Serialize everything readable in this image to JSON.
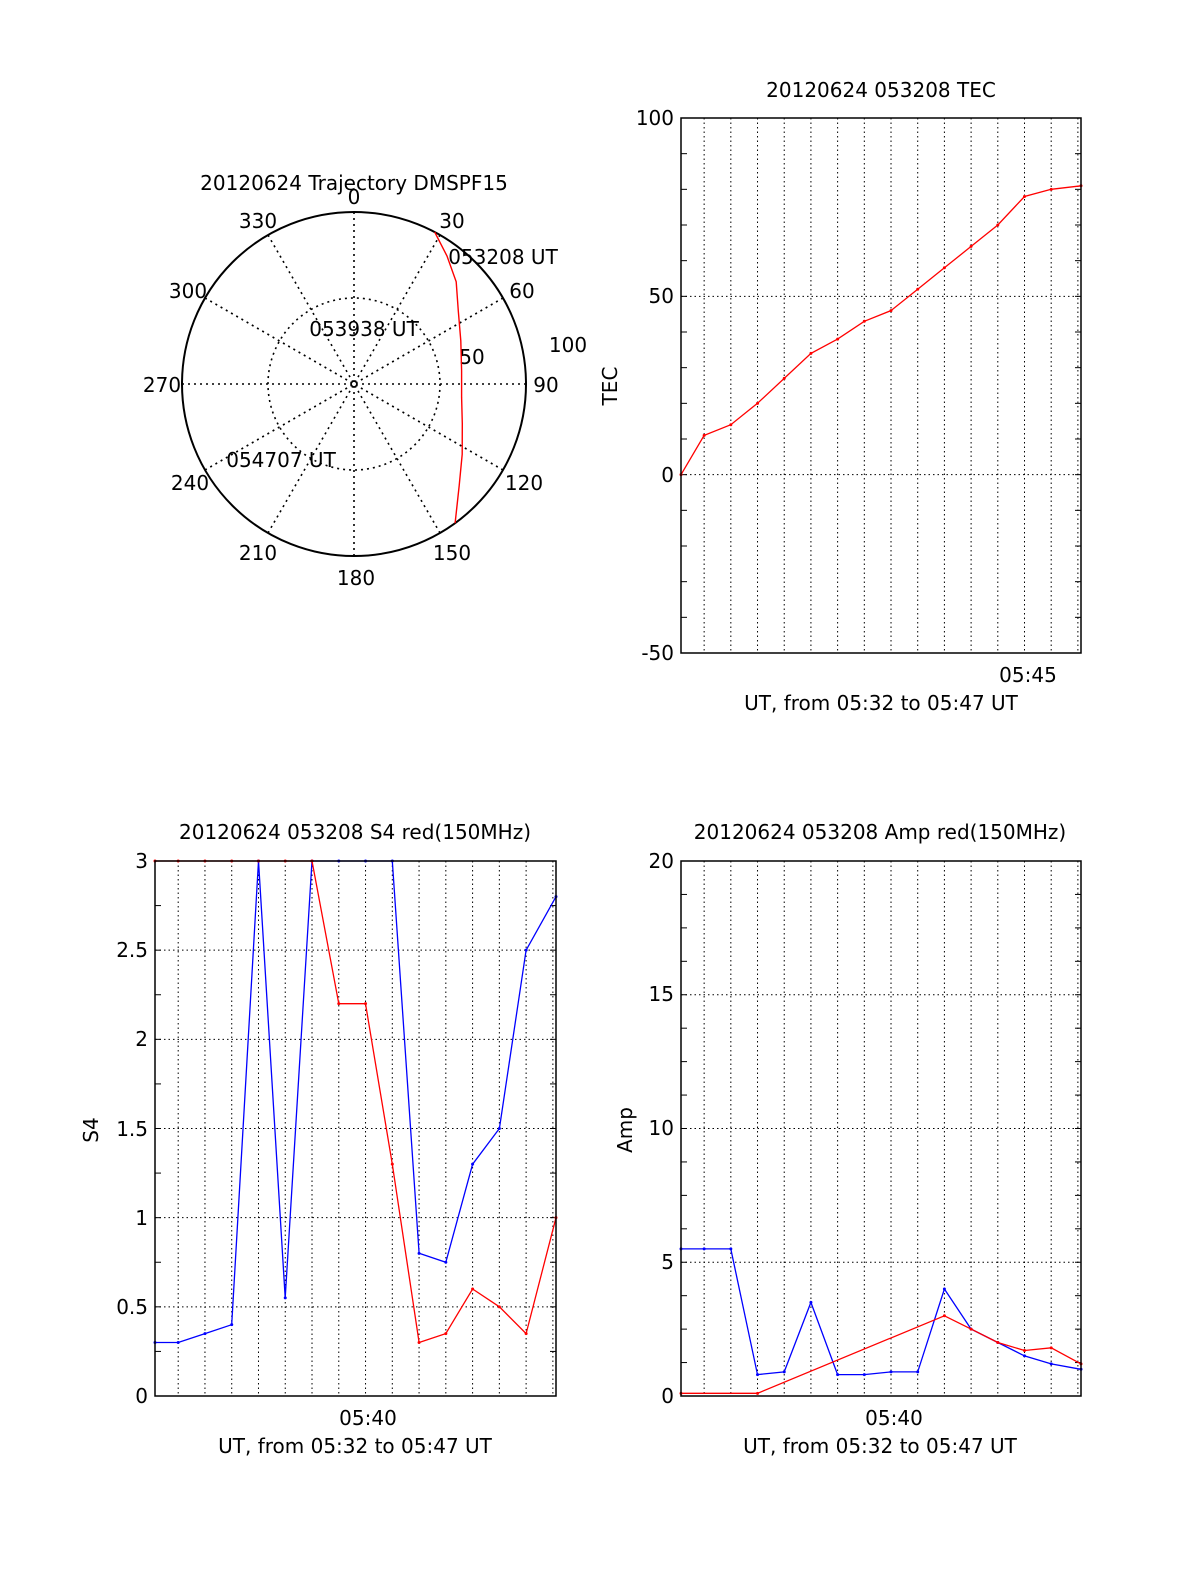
{
  "colors": {
    "series_red": "#ff0000",
    "series_blue": "#0000ff",
    "axis": "#000000",
    "grid": "#000000"
  },
  "chart_data": [
    {
      "type": "polar",
      "title": "20120624 Trajectory DMSPF15",
      "angle_labels": [
        "0",
        "30",
        "60",
        "90",
        "120",
        "150",
        "180",
        "210",
        "240",
        "270",
        "300",
        "330"
      ],
      "radial_labels": [
        "50",
        "100"
      ],
      "rlim": [
        0,
        100
      ],
      "angle_direction": "clockwise, 0 at top",
      "grid": true,
      "series": [
        {
          "color": "red",
          "points": [
            [
              28,
              100
            ],
            [
              36,
              92
            ],
            [
              45,
              84
            ],
            [
              55,
              74
            ],
            [
              68,
              67
            ],
            [
              83,
              63
            ],
            [
              97,
              63
            ],
            [
              110,
              67
            ],
            [
              123,
              75
            ],
            [
              134,
              85
            ],
            [
              144,
              100
            ]
          ]
        }
      ],
      "annotations": [
        {
          "text": "053208 UT",
          "az": 28,
          "r": 100
        },
        {
          "text": "053938 UT",
          "az": 328,
          "r": 42
        },
        {
          "text": "054707 UT",
          "az": 236,
          "r": 100
        }
      ]
    },
    {
      "type": "line",
      "title": "20120624 053208 TEC",
      "xlabel": "UT, from 05:32 to 05:47 UT",
      "ylabel": "TEC",
      "xlim": [
        "05:32:08",
        "05:47:07"
      ],
      "ylim": [
        -50,
        100
      ],
      "yticks": [
        "100",
        "50",
        "0",
        "-50"
      ],
      "xtick_labels": [
        "05:45"
      ],
      "grid": true,
      "series": [
        {
          "color": "red",
          "x": [
            "05:32:08",
            "05:33:00",
            "05:34:00",
            "05:35:00",
            "05:36:00",
            "05:37:00",
            "05:38:00",
            "05:39:00",
            "05:40:00",
            "05:41:00",
            "05:42:00",
            "05:43:00",
            "05:44:00",
            "05:45:00",
            "05:46:00",
            "05:47:07"
          ],
          "y": [
            0,
            11,
            14,
            20,
            27,
            34,
            38,
            43,
            46,
            52,
            58,
            64,
            70,
            78,
            80,
            81
          ]
        }
      ]
    },
    {
      "type": "line",
      "title": "20120624 053208 S4 red(150MHz)",
      "xlabel": "UT, from 05:32 to 05:47 UT",
      "ylabel": "S4",
      "xlim": [
        "05:32:08",
        "05:47:07"
      ],
      "ylim": [
        0,
        3
      ],
      "yticks": [
        "3",
        "2.5",
        "2",
        "1.5",
        "1",
        "0.5",
        "0"
      ],
      "xtick_labels": [
        "05:40"
      ],
      "grid": true,
      "series": [
        {
          "color": "blue",
          "x": [
            "05:32:08",
            "05:33:00",
            "05:34:00",
            "05:35:00",
            "05:36:00",
            "05:37:00",
            "05:38:00",
            "05:39:00",
            "05:40:00",
            "05:41:00",
            "05:42:00",
            "05:43:00",
            "05:44:00",
            "05:45:00",
            "05:46:00",
            "05:47:07"
          ],
          "y": [
            0.3,
            0.3,
            0.35,
            0.4,
            3.0,
            0.55,
            3.0,
            3.0,
            3.0,
            3.0,
            0.8,
            0.75,
            1.3,
            1.5,
            2.5,
            2.8
          ]
        },
        {
          "color": "red",
          "x": [
            "05:32:08",
            "05:33:00",
            "05:34:00",
            "05:35:00",
            "05:36:00",
            "05:37:00",
            "05:38:00",
            "05:39:00",
            "05:40:00",
            "05:41:00",
            "05:42:00",
            "05:43:00",
            "05:44:00",
            "05:45:00",
            "05:46:00",
            "05:47:07"
          ],
          "y": [
            3.0,
            3.0,
            3.0,
            3.0,
            3.0,
            3.0,
            3.0,
            2.2,
            2.2,
            1.3,
            0.3,
            0.35,
            0.6,
            0.5,
            0.35,
            1.0
          ]
        }
      ]
    },
    {
      "type": "line",
      "title": "20120624 053208 Amp red(150MHz)",
      "xlabel": "UT, from 05:32 to 05:47 UT",
      "ylabel": "Amp",
      "xlim": [
        "05:32:08",
        "05:47:07"
      ],
      "ylim": [
        0,
        20
      ],
      "yticks": [
        "20",
        "15",
        "10",
        "5",
        "0"
      ],
      "xtick_labels": [
        "05:40"
      ],
      "grid": true,
      "series": [
        {
          "color": "blue",
          "x": [
            "05:32:08",
            "05:33:00",
            "05:34:00",
            "05:35:00",
            "05:36:00",
            "05:37:00",
            "05:38:00",
            "05:39:00",
            "05:40:00",
            "05:41:00",
            "05:42:00",
            "05:43:00",
            "05:44:00",
            "05:45:00",
            "05:46:00",
            "05:47:07"
          ],
          "y": [
            5.5,
            5.5,
            5.5,
            0.8,
            0.9,
            3.5,
            0.8,
            0.8,
            0.9,
            0.9,
            4.0,
            2.5,
            2.0,
            1.5,
            1.2,
            1.0
          ]
        },
        {
          "color": "red",
          "x": [
            "05:32:08",
            "05:35:00",
            "05:42:00",
            "05:43:00",
            "05:44:00",
            "05:45:00",
            "05:46:00",
            "05:47:07"
          ],
          "y": [
            0.1,
            0.1,
            3.0,
            2.5,
            2.0,
            1.7,
            1.8,
            1.2
          ]
        }
      ]
    }
  ]
}
